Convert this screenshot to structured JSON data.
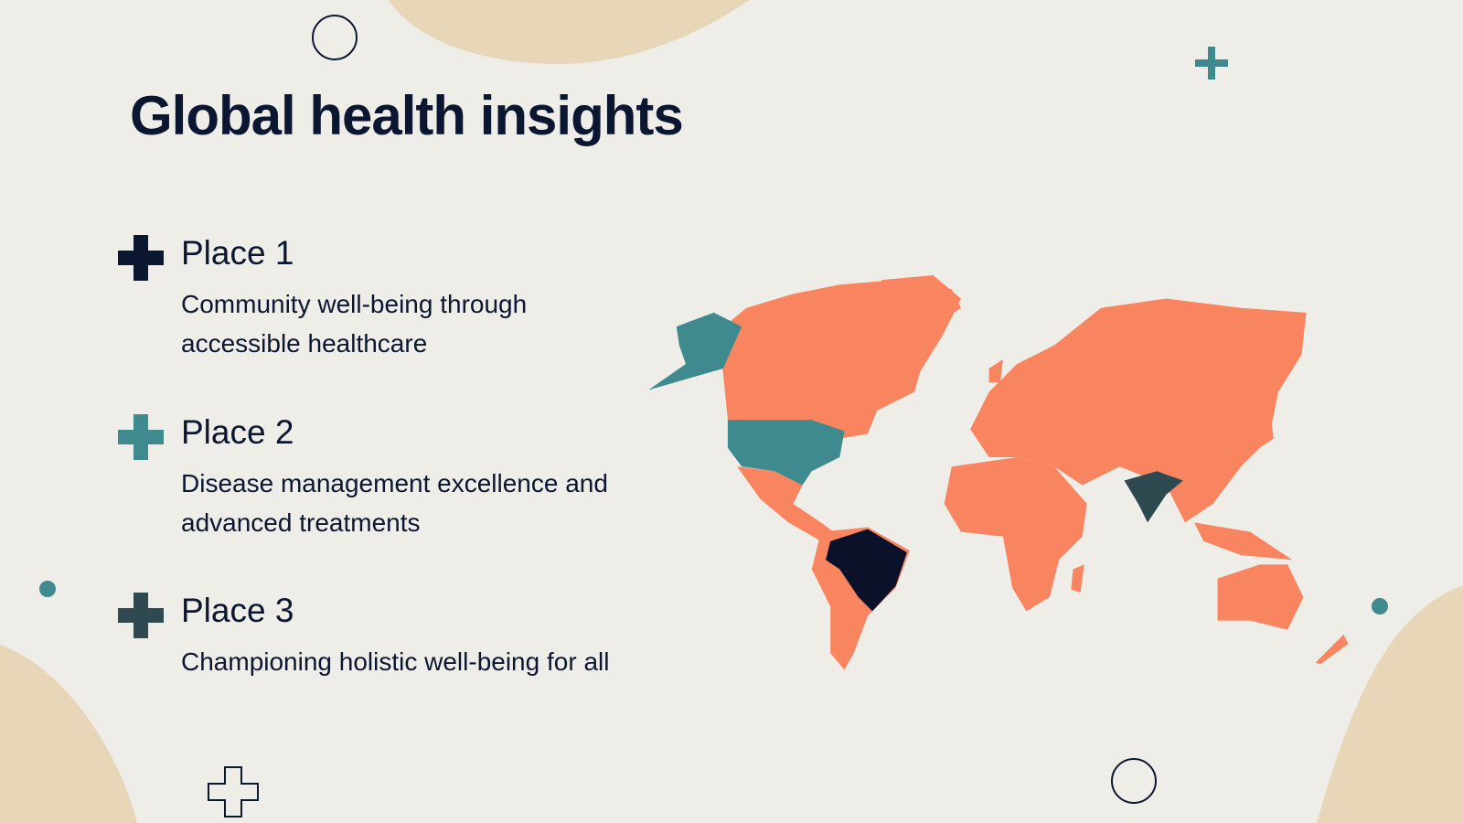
{
  "title": "Global health insights",
  "items": [
    {
      "heading": "Place 1",
      "description": "Community well-being through accessible healthcare"
    },
    {
      "heading": "Place 2",
      "description": "Disease management excellence and advanced treatments"
    },
    {
      "heading": "Place 3",
      "description": "Championing holistic well-being for all"
    }
  ]
}
